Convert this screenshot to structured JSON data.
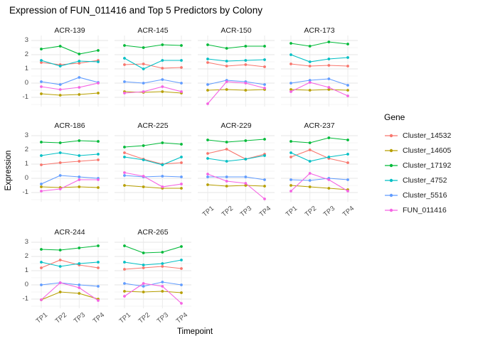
{
  "title": "Expression of FUN_011416 and Top 5 Predictors by Colony",
  "chart_data": {
    "type": "line",
    "title": "Expression of FUN_011416 and Top 5 Predictors by Colony",
    "xlabel": "Timepoint",
    "ylabel": "Expression",
    "legend_title": "Gene",
    "legend_position": "right",
    "grid": true,
    "x": [
      "TP1",
      "TP2",
      "TP3",
      "TP4"
    ],
    "y_ticks": [
      -1,
      0,
      1,
      2,
      3
    ],
    "y_minor_ticks": [
      -1.5,
      -0.5,
      0.5,
      1.5,
      2.5
    ],
    "ylim": [
      -1.65,
      3.35
    ],
    "series_order": [
      "Cluster_14532",
      "Cluster_14605",
      "Cluster_17192",
      "Cluster_4752",
      "Cluster_5516",
      "FUN_011416"
    ],
    "series_colors": {
      "Cluster_14532": "#F8766D",
      "Cluster_14605": "#B79F00",
      "Cluster_17192": "#00BA38",
      "Cluster_4752": "#00BFC4",
      "Cluster_5516": "#619CFF",
      "FUN_011416": "#F564E3"
    },
    "facets": [
      {
        "name": "ACR-139",
        "series": {
          "Cluster_14532": [
            1.45,
            1.3,
            1.4,
            1.6
          ],
          "Cluster_14605": [
            -0.75,
            -0.85,
            -0.8,
            -0.7
          ],
          "Cluster_17192": [
            2.4,
            2.6,
            2.05,
            2.3
          ],
          "Cluster_4752": [
            1.6,
            1.2,
            1.55,
            1.5
          ],
          "Cluster_5516": [
            0.1,
            -0.1,
            0.4,
            0.05
          ],
          "FUN_011416": [
            -0.25,
            -0.45,
            -0.3,
            0.0
          ]
        }
      },
      {
        "name": "ACR-145",
        "series": {
          "Cluster_14532": [
            1.3,
            1.35,
            1.05,
            1.1
          ],
          "Cluster_14605": [
            -0.6,
            -0.65,
            -0.6,
            -0.7
          ],
          "Cluster_17192": [
            2.65,
            2.5,
            2.7,
            2.65
          ],
          "Cluster_4752": [
            1.75,
            1.0,
            1.6,
            1.6
          ],
          "Cluster_5516": [
            0.1,
            0.0,
            0.25,
            0.0
          ],
          "FUN_011416": [
            -0.7,
            -0.6,
            -0.25,
            -0.6
          ]
        }
      },
      {
        "name": "ACR-150",
        "series": {
          "Cluster_14532": [
            1.45,
            1.2,
            1.3,
            1.15
          ],
          "Cluster_14605": [
            -0.5,
            -0.45,
            -0.5,
            -0.45
          ],
          "Cluster_17192": [
            2.7,
            2.45,
            2.6,
            2.6
          ],
          "Cluster_4752": [
            1.7,
            1.55,
            1.6,
            1.65
          ],
          "Cluster_5516": [
            -0.1,
            0.2,
            0.1,
            -0.1
          ],
          "FUN_011416": [
            -1.45,
            0.1,
            0.0,
            -0.35
          ]
        }
      },
      {
        "name": "ACR-173",
        "series": {
          "Cluster_14532": [
            1.35,
            1.2,
            1.25,
            1.2
          ],
          "Cluster_14605": [
            -0.45,
            -0.5,
            -0.45,
            -0.5
          ],
          "Cluster_17192": [
            2.8,
            2.6,
            2.9,
            2.75
          ],
          "Cluster_4752": [
            2.0,
            1.5,
            1.7,
            1.8
          ],
          "Cluster_5516": [
            0.0,
            0.2,
            0.3,
            -0.15
          ],
          "FUN_011416": [
            -0.6,
            0.05,
            -0.3,
            -0.9
          ]
        }
      },
      {
        "name": "ACR-186",
        "series": {
          "Cluster_14532": [
            0.95,
            1.1,
            1.2,
            1.3
          ],
          "Cluster_14605": [
            -0.6,
            -0.65,
            -0.6,
            -0.65
          ],
          "Cluster_17192": [
            2.55,
            2.5,
            2.65,
            2.6
          ],
          "Cluster_4752": [
            1.6,
            1.8,
            1.6,
            1.7
          ],
          "Cluster_5516": [
            -0.4,
            0.2,
            0.1,
            0.0
          ],
          "FUN_011416": [
            -0.9,
            -0.75,
            -0.1,
            -0.1
          ]
        }
      },
      {
        "name": "ACR-225",
        "series": {
          "Cluster_14532": [
            1.8,
            1.35,
            1.0,
            1.1
          ],
          "Cluster_14605": [
            -0.5,
            -0.6,
            -0.7,
            -0.7
          ],
          "Cluster_17192": [
            2.2,
            2.3,
            2.5,
            2.4
          ],
          "Cluster_4752": [
            1.5,
            1.3,
            0.95,
            1.5
          ],
          "Cluster_5516": [
            0.2,
            0.1,
            0.15,
            0.1
          ],
          "FUN_011416": [
            0.4,
            0.15,
            -0.6,
            -0.4
          ]
        }
      },
      {
        "name": "ACR-229",
        "series": {
          "Cluster_14532": [
            1.75,
            2.05,
            1.35,
            1.7
          ],
          "Cluster_14605": [
            -0.45,
            -0.55,
            -0.5,
            -0.55
          ],
          "Cluster_17192": [
            2.7,
            2.55,
            2.65,
            2.75
          ],
          "Cluster_4752": [
            1.4,
            1.2,
            1.35,
            1.6
          ],
          "Cluster_5516": [
            0.1,
            0.1,
            0.1,
            -0.1
          ],
          "FUN_011416": [
            0.3,
            -0.2,
            -0.35,
            -1.45
          ]
        }
      },
      {
        "name": "ACR-237",
        "series": {
          "Cluster_14532": [
            1.5,
            2.0,
            1.4,
            1.1
          ],
          "Cluster_14605": [
            -0.5,
            -0.6,
            -0.7,
            -0.8
          ],
          "Cluster_17192": [
            2.6,
            2.5,
            2.85,
            2.7
          ],
          "Cluster_4752": [
            1.8,
            1.2,
            1.5,
            1.7
          ],
          "Cluster_5516": [
            -0.1,
            -0.15,
            0.0,
            -0.1
          ],
          "FUN_011416": [
            -0.9,
            0.35,
            -0.1,
            -0.9
          ]
        }
      },
      {
        "name": "ACR-244",
        "series": {
          "Cluster_14532": [
            1.2,
            1.75,
            1.4,
            1.2
          ],
          "Cluster_14605": [
            -1.05,
            -0.5,
            -0.6,
            -1.0
          ],
          "Cluster_17192": [
            2.5,
            2.45,
            2.6,
            2.75
          ],
          "Cluster_4752": [
            1.6,
            1.3,
            1.5,
            1.6
          ],
          "Cluster_5516": [
            0.0,
            0.15,
            0.0,
            -0.1
          ],
          "FUN_011416": [
            -1.05,
            0.15,
            -0.2,
            -1.1
          ]
        }
      },
      {
        "name": "ACR-265",
        "series": {
          "Cluster_14532": [
            1.1,
            1.2,
            1.3,
            1.15
          ],
          "Cluster_14605": [
            -0.45,
            -0.5,
            -0.45,
            -0.55
          ],
          "Cluster_17192": [
            2.75,
            2.25,
            2.3,
            2.7
          ],
          "Cluster_4752": [
            1.6,
            1.4,
            1.5,
            1.75
          ],
          "Cluster_5516": [
            0.1,
            -0.1,
            0.2,
            0.0
          ],
          "FUN_011416": [
            -0.8,
            0.1,
            -0.1,
            -1.3
          ]
        }
      }
    ]
  }
}
